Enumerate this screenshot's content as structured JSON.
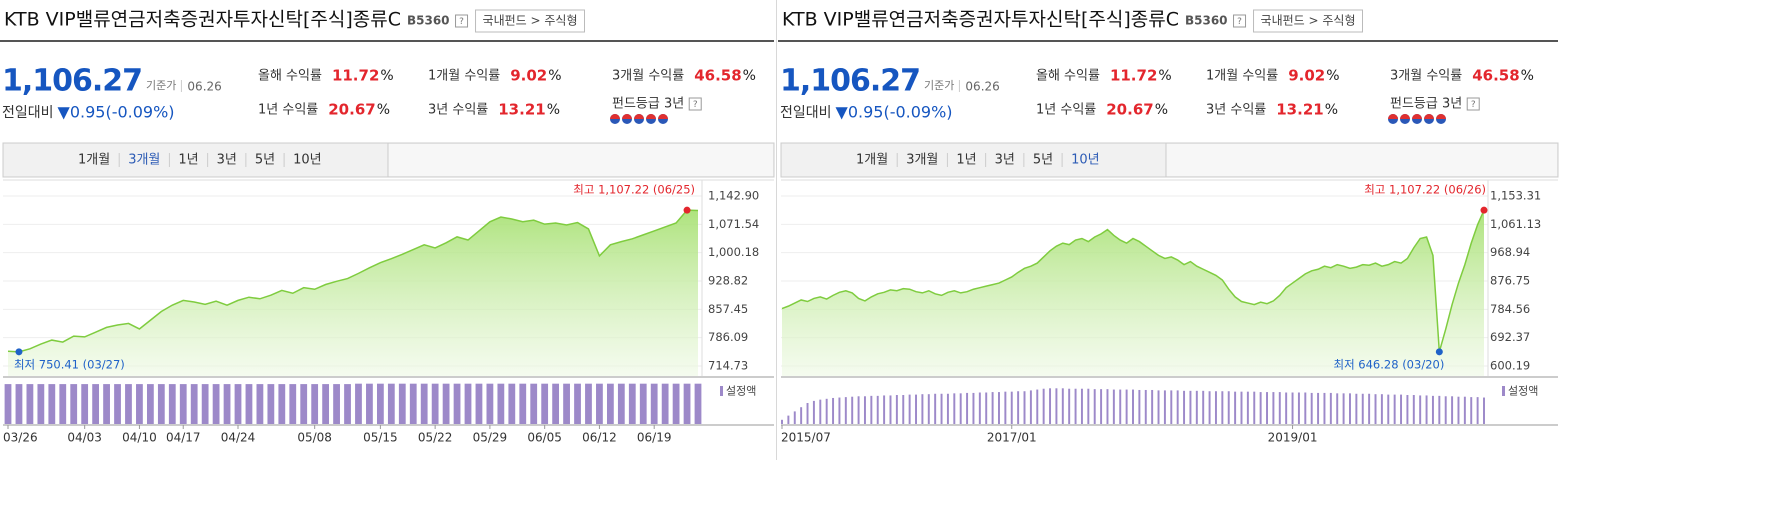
{
  "panels": [
    {
      "title": "KTB VIP밸류연금저축증권자투자신탁[주식]종류C",
      "code": "B5360",
      "help": "?",
      "breadcrumb": "국내펀드 > 주식형",
      "price": "1,106.27",
      "price_label": "기준가",
      "date": "06.26",
      "change_label": "전일대비",
      "change": "▼0.95(-0.09%)",
      "returns": [
        {
          "label": "올해 수익률",
          "value": "11.72",
          "unit": "%"
        },
        {
          "label": "1개월 수익률",
          "value": "9.02",
          "unit": "%"
        },
        {
          "label": "3개월 수익률",
          "value": "46.58",
          "unit": "%"
        },
        {
          "label": "1년 수익률",
          "value": "20.67",
          "unit": "%"
        },
        {
          "label": "3년 수익률",
          "value": "13.21",
          "unit": "%"
        }
      ],
      "grade_label": "펀드등급 3년",
      "tabs": [
        "1개월",
        "3개월",
        "1년",
        "3년",
        "5년",
        "10년"
      ],
      "active_tab": "3개월"
    },
    {
      "title": "KTB VIP밸류연금저축증권자투자신탁[주식]종류C",
      "code": "B5360",
      "help": "?",
      "breadcrumb": "국내펀드 > 주식형",
      "price": "1,106.27",
      "price_label": "기준가",
      "date": "06.26",
      "change_label": "전일대비",
      "change": "▼0.95(-0.09%)",
      "returns": [
        {
          "label": "올해 수익률",
          "value": "11.72",
          "unit": "%"
        },
        {
          "label": "1개월 수익률",
          "value": "9.02",
          "unit": "%"
        },
        {
          "label": "3개월 수익률",
          "value": "46.58",
          "unit": "%"
        },
        {
          "label": "1년 수익률",
          "value": "20.67",
          "unit": "%"
        },
        {
          "label": "3년 수익률",
          "value": "13.21",
          "unit": "%"
        }
      ],
      "grade_label": "펀드등급 3년",
      "tabs": [
        "1개월",
        "3개월",
        "1년",
        "3년",
        "5년",
        "10년"
      ],
      "active_tab": "10년"
    }
  ],
  "chart_data": [
    {
      "type": "line",
      "annotations": [
        "최고 1,107.22 (06/25)",
        "최저 750.41 (03/27)"
      ],
      "xlim": [
        0,
        63
      ],
      "xticks": [
        {
          "value": 0,
          "label": "03/26"
        },
        {
          "value": 7,
          "label": "04/03"
        },
        {
          "value": 12,
          "label": "04/10"
        },
        {
          "value": 16,
          "label": "04/17"
        },
        {
          "value": 21,
          "label": "04/24"
        },
        {
          "value": 28,
          "label": "05/08"
        },
        {
          "value": 34,
          "label": "05/15"
        },
        {
          "value": 39,
          "label": "05/22"
        },
        {
          "value": 44,
          "label": "05/29"
        },
        {
          "value": 49,
          "label": "06/05"
        },
        {
          "value": 54,
          "label": "06/12"
        },
        {
          "value": 59,
          "label": "06/19"
        }
      ],
      "ylim": [
        714.73,
        1142.9
      ],
      "yticks": [
        {
          "value": 1142.9,
          "label": "1,142.90"
        },
        {
          "value": 1071.54,
          "label": "1,071.54"
        },
        {
          "value": 1000.18,
          "label": "1,000.18"
        },
        928.82,
        857.45,
        786.09,
        714.73
      ],
      "y2lim": [
        0,
        100
      ],
      "grid": true,
      "series": [
        {
          "color": "#7fcc3f",
          "values": [
            752,
            750.41,
            758,
            770,
            780,
            775,
            790,
            788,
            800,
            812,
            818,
            822,
            808,
            830,
            852,
            868,
            880,
            876,
            870,
            878,
            868,
            880,
            888,
            884,
            893,
            905,
            898,
            912,
            908,
            920,
            928,
            935,
            948,
            962,
            975,
            985,
            996,
            1008,
            1020,
            1012,
            1025,
            1040,
            1032,
            1055,
            1078,
            1090,
            1085,
            1078,
            1082,
            1072,
            1075,
            1070,
            1076,
            1060,
            992,
            1020,
            1028,
            1035,
            1045,
            1055,
            1065,
            1075,
            1107.22,
            1106.27
          ]
        },
        {
          "name": "설정액",
          "type": "bar",
          "axis": "y2",
          "color": "#9d89c9",
          "values": [
            95,
            95,
            95,
            95,
            95,
            95,
            95,
            95,
            95,
            95,
            95,
            95,
            95,
            95,
            95,
            95,
            95,
            95,
            95,
            95,
            95,
            95,
            95,
            95,
            95,
            95,
            95,
            95,
            95,
            95,
            95,
            95,
            96,
            96,
            96,
            96,
            96,
            96,
            96,
            96,
            96,
            96,
            96,
            96,
            96,
            96,
            96,
            96,
            96,
            96,
            96,
            96,
            96,
            96,
            96,
            96,
            96,
            96,
            96,
            96,
            96,
            96,
            96,
            96
          ]
        }
      ]
    },
    {
      "type": "line",
      "annotations": [
        "최고 1,107.22 (06/26)",
        "최저 646.28 (03/20)"
      ],
      "xlim": [
        0,
        110
      ],
      "xticks": [
        {
          "value": 0,
          "label": "2015/07"
        },
        {
          "value": 36,
          "label": "2017/01"
        },
        {
          "value": 80,
          "label": "2019/01"
        }
      ],
      "ylim": [
        600.19,
        1153.31
      ],
      "yticks": [
        {
          "value": 1153.31,
          "label": "1,153.31"
        },
        {
          "value": 1061.13,
          "label": "1,061.13"
        },
        968.94,
        876.75,
        784.56,
        692.37,
        600.19
      ],
      "y2lim": [
        0,
        100
      ],
      "grid": true,
      "series": [
        {
          "color": "#7fcc3f",
          "values": [
            787,
            795,
            805,
            815,
            810,
            820,
            825,
            818,
            830,
            840,
            845,
            838,
            820,
            812,
            825,
            835,
            840,
            848,
            845,
            852,
            850,
            842,
            838,
            845,
            835,
            830,
            840,
            845,
            838,
            842,
            850,
            855,
            860,
            865,
            870,
            880,
            890,
            905,
            918,
            925,
            935,
            955,
            975,
            990,
            1000,
            995,
            1010,
            1015,
            1005,
            1020,
            1030,
            1044,
            1025,
            1010,
            1000,
            1015,
            1005,
            990,
            975,
            960,
            950,
            955,
            945,
            930,
            940,
            925,
            915,
            905,
            895,
            880,
            850,
            825,
            810,
            805,
            800,
            808,
            803,
            812,
            830,
            855,
            870,
            885,
            900,
            910,
            915,
            925,
            920,
            930,
            925,
            918,
            922,
            930,
            928,
            935,
            925,
            930,
            940,
            935,
            950,
            985,
            1015,
            1020,
            960,
            646.28,
            720,
            800,
            870,
            930,
            1000,
            1060,
            1107.22
          ]
        },
        {
          "name": "설정액",
          "type": "bar",
          "axis": "y2",
          "color": "#9d89c9",
          "values": [
            10,
            20,
            30,
            40,
            50,
            55,
            58,
            60,
            62,
            63,
            64,
            65,
            66,
            66,
            67,
            67,
            68,
            68,
            69,
            69,
            70,
            70,
            71,
            71,
            72,
            72,
            72,
            73,
            73,
            74,
            74,
            75,
            75,
            76,
            76,
            77,
            77,
            78,
            78,
            80,
            82,
            84,
            85,
            85,
            85,
            84,
            84,
            84,
            84,
            83,
            83,
            83,
            82,
            82,
            82,
            82,
            81,
            81,
            81,
            80,
            80,
            80,
            80,
            79,
            79,
            79,
            79,
            78,
            78,
            78,
            78,
            77,
            77,
            77,
            77,
            76,
            76,
            76,
            76,
            75,
            75,
            75,
            75,
            74,
            74,
            74,
            74,
            73,
            73,
            73,
            72,
            72,
            72,
            71,
            71,
            70,
            70,
            70,
            69,
            69,
            68,
            68,
            67,
            67,
            66,
            66,
            65,
            65,
            64,
            64,
            63
          ]
        }
      ]
    }
  ]
}
